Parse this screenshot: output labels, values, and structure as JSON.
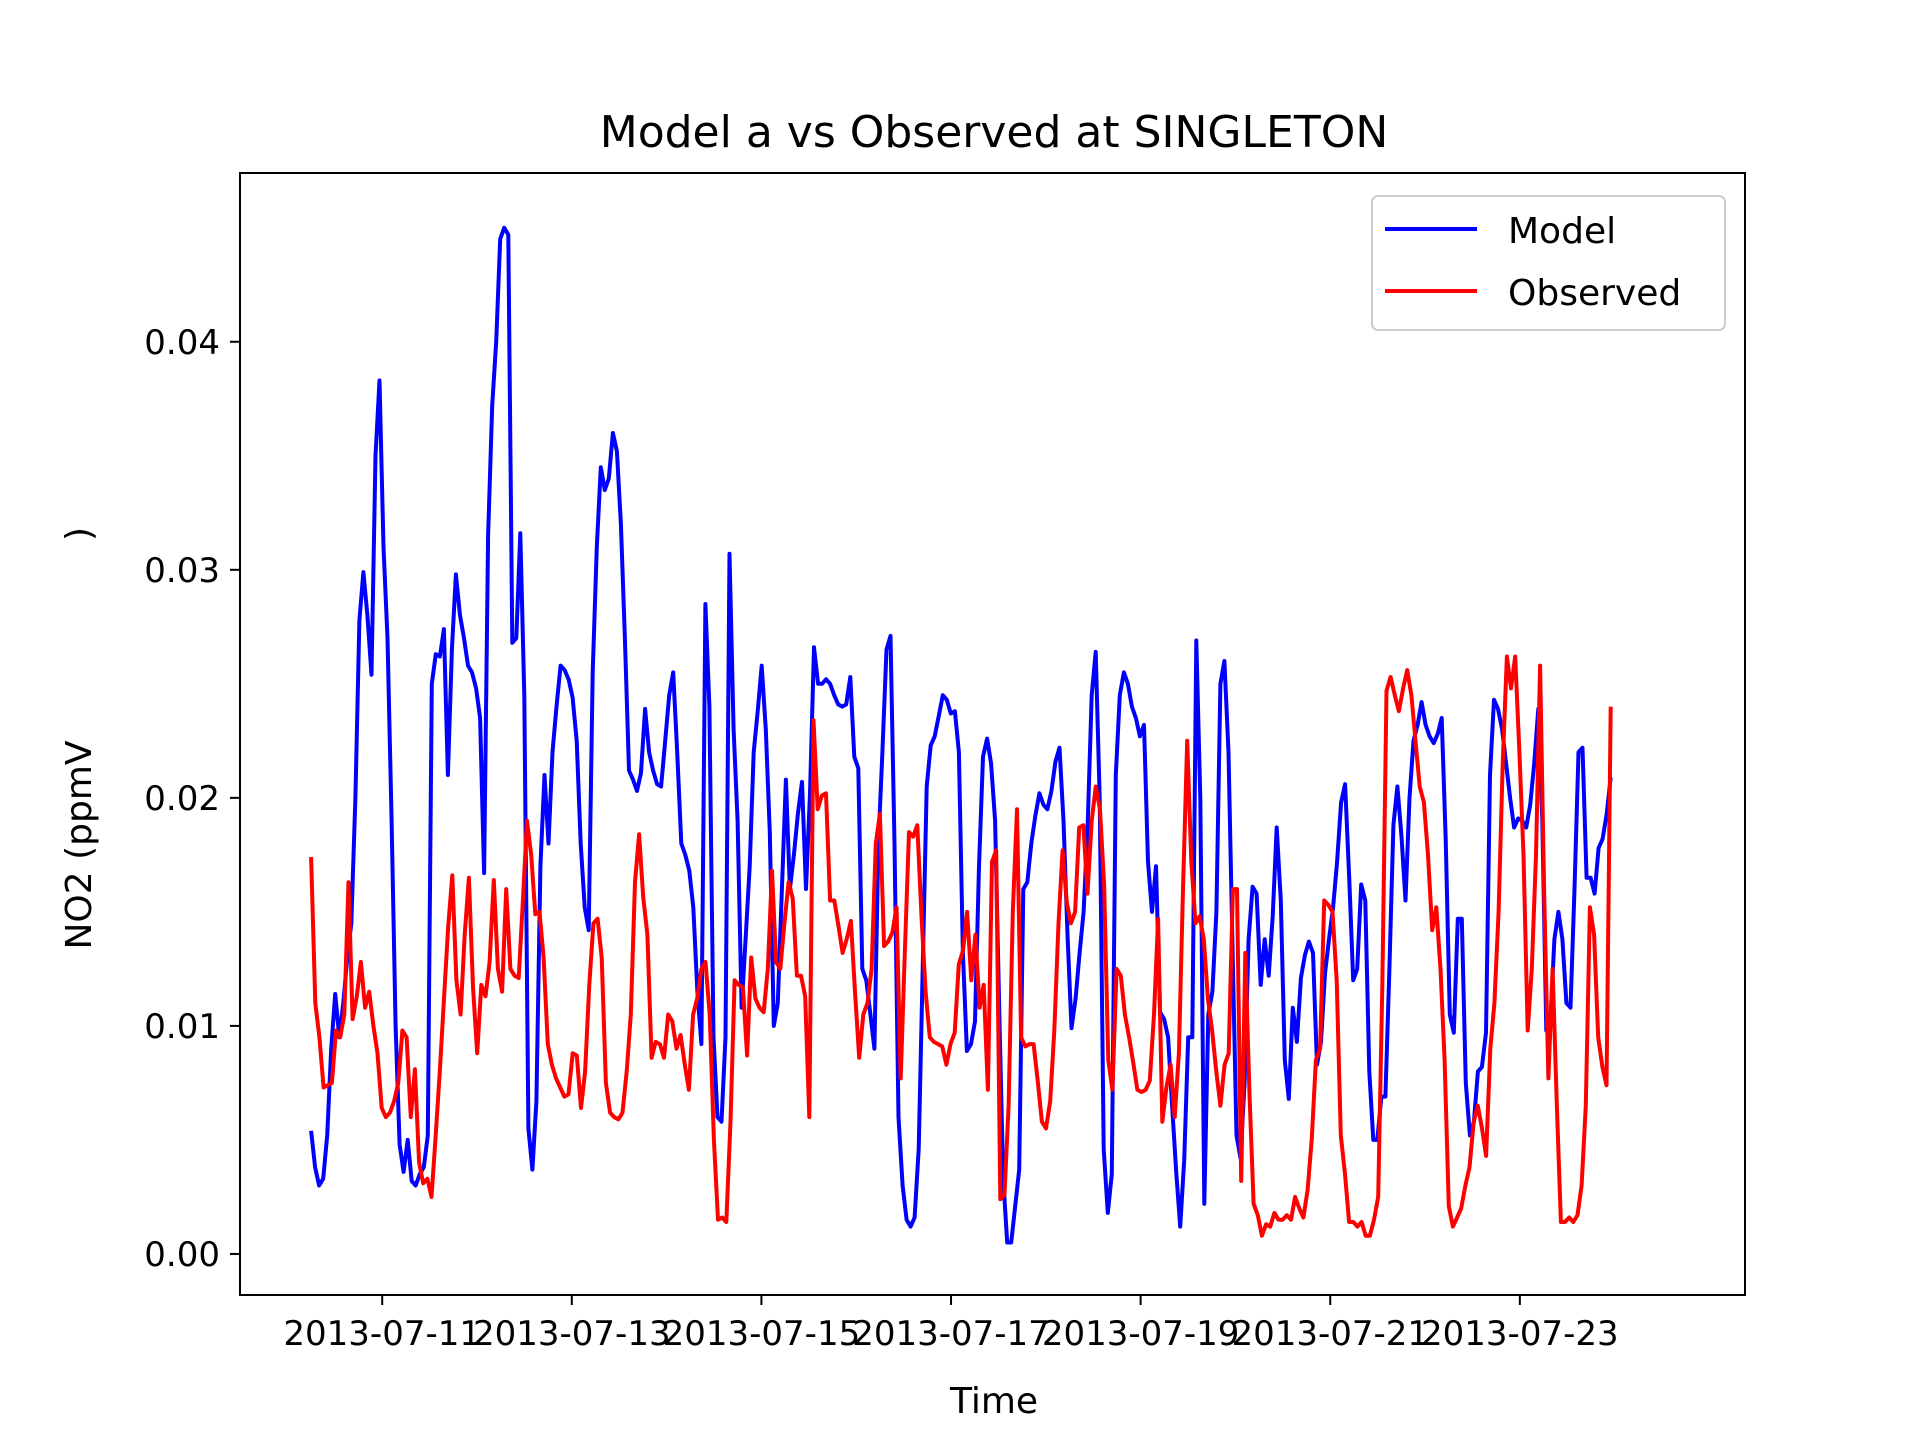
{
  "chart_data": {
    "type": "line",
    "title": "Model a vs Observed at SINGLETON",
    "xlabel": "Time",
    "ylabel": "NO2 (ppmV",
    "ylabel_stray": ")",
    "xlim": [
      "2013-07-09T12:00",
      "2013-07-25T09:00"
    ],
    "ylim": [
      -0.0018,
      0.0474
    ],
    "x_ticks": [
      "2013-07-11",
      "2013-07-13",
      "2013-07-15",
      "2013-07-17",
      "2013-07-19",
      "2013-07-21",
      "2013-07-23"
    ],
    "y_ticks": [
      0.0,
      0.01,
      0.02,
      0.03,
      0.04
    ],
    "y_tick_labels": [
      "0.00",
      "0.01",
      "0.02",
      "0.03",
      "0.04"
    ],
    "grid": false,
    "legend_position": "top-right",
    "series": [
      {
        "name": "Model",
        "color": "#0000ff",
        "x_start": "2013-07-10T06:00",
        "x_end": "2013-07-23T23:00",
        "values": [
          0.0054,
          0.0038,
          0.003,
          0.0033,
          0.0052,
          0.009,
          0.0114,
          0.0095,
          0.011,
          0.013,
          0.0145,
          0.02,
          0.0278,
          0.0299,
          0.028,
          0.0254,
          0.035,
          0.0383,
          0.031,
          0.027,
          0.019,
          0.01,
          0.0048,
          0.0036,
          0.005,
          0.0032,
          0.003,
          0.0035,
          0.0038,
          0.0052,
          0.025,
          0.0263,
          0.0262,
          0.0274,
          0.021,
          0.0265,
          0.0298,
          0.028,
          0.027,
          0.0258,
          0.0255,
          0.0248,
          0.0235,
          0.0167,
          0.0315,
          0.0372,
          0.04,
          0.0445,
          0.045,
          0.0447,
          0.0268,
          0.027,
          0.0316,
          0.0245,
          0.0055,
          0.0037,
          0.0067,
          0.017,
          0.021,
          0.018,
          0.022,
          0.024,
          0.0258,
          0.0256,
          0.0252,
          0.0244,
          0.0225,
          0.018,
          0.0152,
          0.0142,
          0.0255,
          0.031,
          0.0345,
          0.0335,
          0.034,
          0.036,
          0.0352,
          0.032,
          0.027,
          0.0212,
          0.0208,
          0.0203,
          0.0211,
          0.0239,
          0.022,
          0.0212,
          0.0206,
          0.0205,
          0.0225,
          0.0245,
          0.0255,
          0.022,
          0.018,
          0.0175,
          0.0168,
          0.0152,
          0.0115,
          0.0092,
          0.0285,
          0.024,
          0.0095,
          0.006,
          0.0058,
          0.0095,
          0.0307,
          0.023,
          0.019,
          0.0108,
          0.0138,
          0.017,
          0.022,
          0.0238,
          0.0258,
          0.023,
          0.0185,
          0.01,
          0.011,
          0.016,
          0.0208,
          0.016,
          0.0175,
          0.0193,
          0.0207,
          0.016,
          0.0202,
          0.0266,
          0.025,
          0.025,
          0.0252,
          0.025,
          0.0245,
          0.0241,
          0.024,
          0.0241,
          0.0253,
          0.0218,
          0.0213,
          0.0125,
          0.012,
          0.0105,
          0.009,
          0.018,
          0.022,
          0.0265,
          0.0271,
          0.018,
          0.006,
          0.003,
          0.0015,
          0.0012,
          0.0016,
          0.0046,
          0.0125,
          0.0205,
          0.0223,
          0.0227,
          0.0236,
          0.0245,
          0.0243,
          0.0237,
          0.0238,
          0.022,
          0.0132,
          0.0089,
          0.0092,
          0.0102,
          0.017,
          0.0218,
          0.0226,
          0.0215,
          0.019,
          0.011,
          0.0034,
          0.0005,
          0.0005,
          0.0021,
          0.0037,
          0.016,
          0.0163,
          0.018,
          0.0192,
          0.0202,
          0.0197,
          0.0195,
          0.0203,
          0.0216,
          0.0222,
          0.019,
          0.014,
          0.0099,
          0.0112,
          0.0132,
          0.015,
          0.0187,
          0.0245,
          0.0264,
          0.02,
          0.0046,
          0.0018,
          0.0035,
          0.021,
          0.0245,
          0.0255,
          0.025,
          0.024,
          0.0235,
          0.0227,
          0.0232,
          0.0172,
          0.015,
          0.017,
          0.0106,
          0.0103,
          0.0095,
          0.0065,
          0.0036,
          0.0012,
          0.0041,
          0.0095,
          0.0095,
          0.0269,
          0.02,
          0.0022,
          0.0105,
          0.0115,
          0.015,
          0.025,
          0.026,
          0.022,
          0.0135,
          0.0052,
          0.0042,
          0.0075,
          0.0138,
          0.0161,
          0.0158,
          0.0118,
          0.0138,
          0.0122,
          0.0148,
          0.0187,
          0.0155,
          0.0085,
          0.0068,
          0.0108,
          0.0093,
          0.0121,
          0.0131,
          0.0137,
          0.0132,
          0.0083,
          0.0093,
          0.0123,
          0.0138,
          0.0152,
          0.0172,
          0.0198,
          0.0206,
          0.0165,
          0.012,
          0.0125,
          0.0162,
          0.0155,
          0.008,
          0.005,
          0.005,
          0.0069,
          0.0069,
          0.0125,
          0.0188,
          0.0205,
          0.0183,
          0.0155,
          0.02,
          0.0225,
          0.0232,
          0.0242,
          0.0232,
          0.0227,
          0.0224,
          0.0228,
          0.0235,
          0.0182,
          0.0105,
          0.0097,
          0.0147,
          0.0147,
          0.0075,
          0.0052,
          0.0058,
          0.008,
          0.0082,
          0.0097,
          0.021,
          0.0243,
          0.0239,
          0.023,
          0.0215,
          0.02,
          0.0187,
          0.0191,
          0.019,
          0.0187,
          0.0197,
          0.0215,
          0.0239,
          0.019,
          0.0098,
          0.0101,
          0.0138,
          0.015,
          0.0138,
          0.011,
          0.0108,
          0.016,
          0.022,
          0.0222,
          0.0165,
          0.0165,
          0.0158,
          0.0178,
          0.0182,
          0.0193,
          0.0209
        ]
      },
      {
        "name": "Observed",
        "color": "#ff0000",
        "x_start": "2013-07-10T06:00",
        "x_end": "2013-07-23T23:00",
        "values": [
          0.0174,
          0.011,
          0.0095,
          0.0073,
          0.0074,
          0.0075,
          0.0098,
          0.0095,
          0.0105,
          0.0163,
          0.0103,
          0.0113,
          0.0128,
          0.0108,
          0.0115,
          0.01,
          0.0088,
          0.0064,
          0.006,
          0.0062,
          0.0067,
          0.0075,
          0.0098,
          0.0095,
          0.006,
          0.0081,
          0.004,
          0.0031,
          0.0033,
          0.0025,
          0.0052,
          0.008,
          0.0112,
          0.0143,
          0.0166,
          0.012,
          0.0105,
          0.014,
          0.0165,
          0.0117,
          0.0088,
          0.0118,
          0.0113,
          0.0128,
          0.0164,
          0.0125,
          0.0115,
          0.016,
          0.0125,
          0.0122,
          0.0121,
          0.0155,
          0.019,
          0.0175,
          0.0149,
          0.015,
          0.013,
          0.0092,
          0.0083,
          0.0077,
          0.0073,
          0.0069,
          0.007,
          0.0088,
          0.0087,
          0.0064,
          0.008,
          0.0118,
          0.0145,
          0.0147,
          0.013,
          0.0075,
          0.0062,
          0.006,
          0.0059,
          0.0062,
          0.008,
          0.0105,
          0.0163,
          0.0184,
          0.0156,
          0.014,
          0.0086,
          0.0093,
          0.0092,
          0.0086,
          0.0105,
          0.0102,
          0.009,
          0.0096,
          0.0083,
          0.0072,
          0.0105,
          0.0112,
          0.0125,
          0.0128,
          0.0105,
          0.005,
          0.0015,
          0.0016,
          0.0014,
          0.0058,
          0.012,
          0.0118,
          0.0117,
          0.0087,
          0.013,
          0.0112,
          0.0108,
          0.0106,
          0.0125,
          0.0168,
          0.0128,
          0.0125,
          0.0145,
          0.0163,
          0.0156,
          0.0122,
          0.0122,
          0.0113,
          0.006,
          0.0234,
          0.0195,
          0.0201,
          0.0202,
          0.0155,
          0.0155,
          0.0144,
          0.0132,
          0.0138,
          0.0146,
          0.0115,
          0.0086,
          0.0105,
          0.011,
          0.0125,
          0.018,
          0.0193,
          0.0135,
          0.0137,
          0.0141,
          0.0152,
          0.0077,
          0.0132,
          0.0185,
          0.0183,
          0.0188,
          0.0148,
          0.0115,
          0.0095,
          0.0093,
          0.0092,
          0.0091,
          0.0083,
          0.0092,
          0.0097,
          0.0127,
          0.0133,
          0.015,
          0.012,
          0.014,
          0.0108,
          0.0118,
          0.0072,
          0.0172,
          0.0177,
          0.0024,
          0.0026,
          0.0065,
          0.015,
          0.0195,
          0.0095,
          0.0091,
          0.0092,
          0.0092,
          0.0076,
          0.0058,
          0.0055,
          0.0067,
          0.0098,
          0.0145,
          0.0177,
          0.0154,
          0.0145,
          0.015,
          0.0187,
          0.0188,
          0.0158,
          0.019,
          0.0205,
          0.0195,
          0.0162,
          0.0085,
          0.0072,
          0.0125,
          0.0122,
          0.0105,
          0.0095,
          0.0084,
          0.0072,
          0.0071,
          0.0072,
          0.0076,
          0.0105,
          0.0147,
          0.0058,
          0.0073,
          0.0083,
          0.006,
          0.0088,
          0.016,
          0.0225,
          0.0172,
          0.0145,
          0.0148,
          0.0138,
          0.0112,
          0.0098,
          0.008,
          0.0065,
          0.0083,
          0.0088,
          0.016,
          0.016,
          0.0032,
          0.0132,
          0.007,
          0.0022,
          0.0017,
          0.0008,
          0.0013,
          0.0012,
          0.0018,
          0.0015,
          0.0015,
          0.0017,
          0.0015,
          0.0025,
          0.002,
          0.0016,
          0.0028,
          0.005,
          0.0085,
          0.009,
          0.0155,
          0.0153,
          0.015,
          0.012,
          0.0052,
          0.0035,
          0.0014,
          0.0014,
          0.0012,
          0.0014,
          0.0008,
          0.0008,
          0.0015,
          0.0025,
          0.0117,
          0.0247,
          0.0253,
          0.0245,
          0.0238,
          0.0248,
          0.0256,
          0.0245,
          0.0225,
          0.0205,
          0.0198,
          0.0175,
          0.0142,
          0.0152,
          0.0125,
          0.0085,
          0.0021,
          0.0012,
          0.0016,
          0.002,
          0.003,
          0.0038,
          0.0058,
          0.0065,
          0.0055,
          0.0043,
          0.009,
          0.011,
          0.015,
          0.0215,
          0.0262,
          0.0248,
          0.0262,
          0.022,
          0.0175,
          0.0098,
          0.0125,
          0.0175,
          0.0258,
          0.0155,
          0.0077,
          0.0125,
          0.0067,
          0.0014,
          0.0014,
          0.0016,
          0.0014,
          0.0017,
          0.003,
          0.0065,
          0.0152,
          0.014,
          0.0095,
          0.0082,
          0.0074,
          0.024
        ]
      }
    ]
  }
}
